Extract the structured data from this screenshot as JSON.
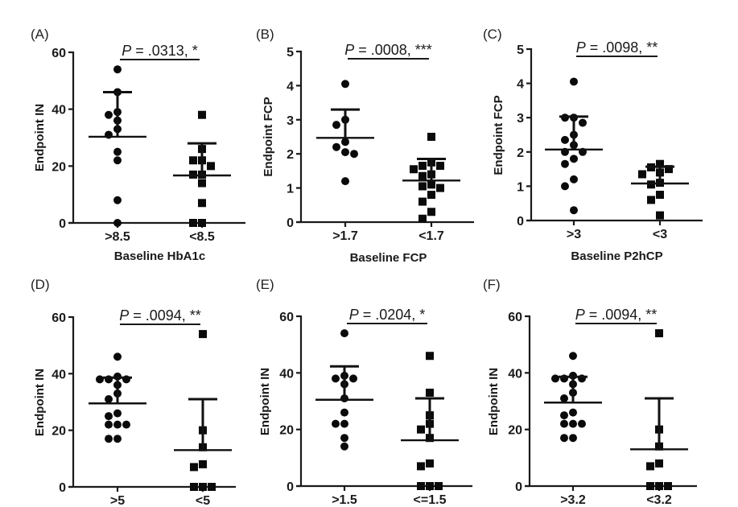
{
  "chart_data": [
    {
      "panel": "(A)",
      "type": "scatter",
      "title": "",
      "xlabel": "Baseline HbA1c",
      "ylabel": "Endpoint IN",
      "ylim": [
        0,
        60
      ],
      "yticks": [
        "0",
        "20",
        "40",
        "60"
      ],
      "categories": [
        ">8.5",
        "<8.5"
      ],
      "pvalue_text": "P = .0313, *",
      "series": [
        {
          "name": ">8.5",
          "marker": "circle",
          "values": [
            54,
            46,
            39,
            38,
            36,
            33,
            31,
            25,
            22,
            8,
            0
          ],
          "mean": 30.3,
          "sd_upper": 46
        },
        {
          "name": "<8.5",
          "marker": "square",
          "values": [
            38,
            26,
            22,
            22,
            20,
            17,
            17,
            14,
            7,
            0,
            0
          ],
          "mean": 16.7,
          "sd_upper": 28
        }
      ]
    },
    {
      "panel": "(B)",
      "type": "scatter",
      "title": "",
      "xlabel": "Baseline FCP",
      "ylabel": "Endpoint FCP",
      "ylim": [
        0,
        5
      ],
      "yticks": [
        "0",
        "1",
        "2",
        "3",
        "4",
        "5"
      ],
      "categories": [
        ">1.7",
        "<1.7"
      ],
      "pvalue_text": "P = .0008, ***",
      "series": [
        {
          "name": ">1.7",
          "marker": "circle",
          "values": [
            4.05,
            3.0,
            2.85,
            2.35,
            2.2,
            2.05,
            2.0,
            1.2
          ],
          "mean": 2.47,
          "sd_upper": 3.3
        },
        {
          "name": "<1.7",
          "marker": "square",
          "values": [
            2.5,
            1.75,
            1.65,
            1.65,
            1.55,
            1.4,
            1.35,
            1.1,
            1.05,
            1.0,
            0.8,
            0.6,
            0.3,
            0.1
          ],
          "mean": 1.22,
          "sd_upper": 1.85
        }
      ]
    },
    {
      "panel": "(C)",
      "type": "scatter",
      "title": "",
      "xlabel": "Baseline P2hCP",
      "ylabel": "Endpoint FCP",
      "ylim": [
        0,
        5
      ],
      "yticks": [
        "0",
        "1",
        "2",
        "3",
        "4",
        "5"
      ],
      "categories": [
        ">3",
        "<3"
      ],
      "pvalue_text": "P = .0098, **",
      "series": [
        {
          "name": ">3",
          "marker": "circle",
          "values": [
            4.05,
            3.0,
            3.0,
            2.85,
            2.5,
            2.35,
            2.2,
            2.0,
            2.0,
            1.8,
            1.65,
            1.2,
            1.0,
            0.3
          ],
          "mean": 2.07,
          "sd_upper": 3.03
        },
        {
          "name": "<3",
          "marker": "square",
          "values": [
            1.65,
            1.55,
            1.5,
            1.4,
            1.35,
            1.1,
            1.05,
            0.75,
            0.6,
            0.15
          ],
          "mean": 1.08,
          "sd_upper": 1.57
        }
      ]
    },
    {
      "panel": "(D)",
      "type": "scatter",
      "title": "",
      "xlabel": "",
      "ylabel": "Endpoint IN",
      "ylim": [
        0,
        60
      ],
      "yticks": [
        "0",
        "20",
        "40",
        "60"
      ],
      "categories": [
        ">5",
        "<5"
      ],
      "pvalue_text": "P = .0094, **",
      "series": [
        {
          "name": ">5",
          "marker": "circle",
          "values": [
            46,
            39,
            38,
            38,
            38,
            36,
            33,
            31,
            26,
            25,
            22,
            22,
            22,
            17,
            17
          ],
          "mean": 29.5,
          "sd_upper": 38.6
        },
        {
          "name": "<5",
          "marker": "square",
          "values": [
            54,
            20,
            14,
            8,
            7,
            0,
            0,
            0
          ],
          "mean": 13,
          "sd_upper": 31
        }
      ]
    },
    {
      "panel": "(E)",
      "type": "scatter",
      "title": "",
      "xlabel": "",
      "ylabel": "Endpoint IN",
      "ylim": [
        0,
        60
      ],
      "yticks": [
        "0",
        "20",
        "40",
        "60"
      ],
      "categories": [
        ">1.5",
        "<=1.5"
      ],
      "pvalue_text": "P = .0204, *",
      "series": [
        {
          "name": ">1.5",
          "marker": "circle",
          "values": [
            54,
            39,
            38,
            38,
            36,
            31,
            26,
            22,
            22,
            17,
            14
          ],
          "mean": 30.5,
          "sd_upper": 42.3
        },
        {
          "name": "<=1.5",
          "marker": "square",
          "values": [
            46,
            33,
            25,
            22,
            20,
            17,
            8,
            7,
            0,
            0,
            0
          ],
          "mean": 16.2,
          "sd_upper": 31
        }
      ]
    },
    {
      "panel": "(F)",
      "type": "scatter",
      "title": "",
      "xlabel": "",
      "ylabel": "Endpoint IN",
      "ylim": [
        0,
        60
      ],
      "yticks": [
        "0",
        "20",
        "40",
        "60"
      ],
      "categories": [
        ">3.2",
        "<3.2"
      ],
      "pvalue_text": "P = .0094, **",
      "series": [
        {
          "name": ">3.2",
          "marker": "circle",
          "values": [
            46,
            39,
            38,
            38,
            38,
            36,
            33,
            31,
            26,
            25,
            22,
            22,
            22,
            17,
            17
          ],
          "mean": 29.5,
          "sd_upper": 38.6
        },
        {
          "name": "<3.2",
          "marker": "square",
          "values": [
            54,
            20,
            14,
            8,
            7,
            0,
            0,
            0
          ],
          "mean": 13,
          "sd_upper": 31
        }
      ]
    }
  ]
}
